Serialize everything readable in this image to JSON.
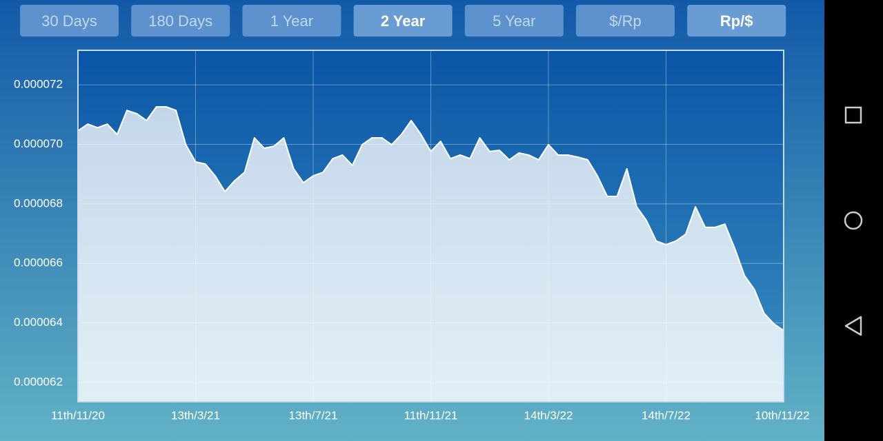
{
  "buttons": [
    {
      "label": "30 Days",
      "active": false
    },
    {
      "label": "180 Days",
      "active": false
    },
    {
      "label": "1 Year",
      "active": false
    },
    {
      "label": "2 Year",
      "active": true
    },
    {
      "label": "5 Year",
      "active": false
    },
    {
      "label": "$/Rp",
      "active": false
    },
    {
      "label": "Rp/$",
      "active": true
    }
  ],
  "chart_data": {
    "type": "area",
    "color": "#ffffff",
    "grid": true,
    "ylim": [
      6.135e-05,
      7.316e-05
    ],
    "yticks": [
      {
        "value": 6.2e-05,
        "label": "0.000062"
      },
      {
        "value": 6.4e-05,
        "label": "0.000064"
      },
      {
        "value": 6.6e-05,
        "label": "0.000066"
      },
      {
        "value": 6.8e-05,
        "label": "0.000068"
      },
      {
        "value": 7e-05,
        "label": "0.000070"
      },
      {
        "value": 7.2e-05,
        "label": "0.000072"
      }
    ],
    "xtick_labels": [
      "11th/11/20",
      "13th/3/21",
      "13th/7/21",
      "11th/11/21",
      "14th/3/22",
      "14th/7/22",
      "10th/11/22"
    ],
    "values": [
      7.045e-05,
      7.068e-05,
      7.056e-05,
      7.068e-05,
      7.033e-05,
      7.114e-05,
      7.103e-05,
      7.08e-05,
      7.126e-05,
      7.126e-05,
      7.114e-05,
      6.999e-05,
      6.941e-05,
      6.934e-05,
      6.894e-05,
      6.841e-05,
      6.878e-05,
      6.906e-05,
      7.022e-05,
      6.987e-05,
      6.994e-05,
      7.022e-05,
      6.918e-05,
      6.871e-05,
      6.894e-05,
      6.906e-05,
      6.952e-05,
      6.964e-05,
      6.929e-05,
      6.999e-05,
      7.022e-05,
      7.022e-05,
      6.999e-05,
      7.033e-05,
      7.08e-05,
      7.033e-05,
      6.976e-05,
      7.01e-05,
      6.952e-05,
      6.964e-05,
      6.952e-05,
      7.022e-05,
      6.976e-05,
      6.98e-05,
      6.948e-05,
      6.971e-05,
      6.964e-05,
      6.948e-05,
      6.999e-05,
      6.964e-05,
      6.964e-05,
      6.957e-05,
      6.948e-05,
      6.894e-05,
      6.825e-05,
      6.825e-05,
      6.918e-05,
      6.79e-05,
      6.744e-05,
      6.675e-05,
      6.663e-05,
      6.675e-05,
      6.698e-05,
      6.79e-05,
      6.721e-05,
      6.721e-05,
      6.732e-05,
      6.651e-05,
      6.559e-05,
      6.513e-05,
      6.432e-05,
      6.397e-05,
      6.374e-05
    ]
  }
}
